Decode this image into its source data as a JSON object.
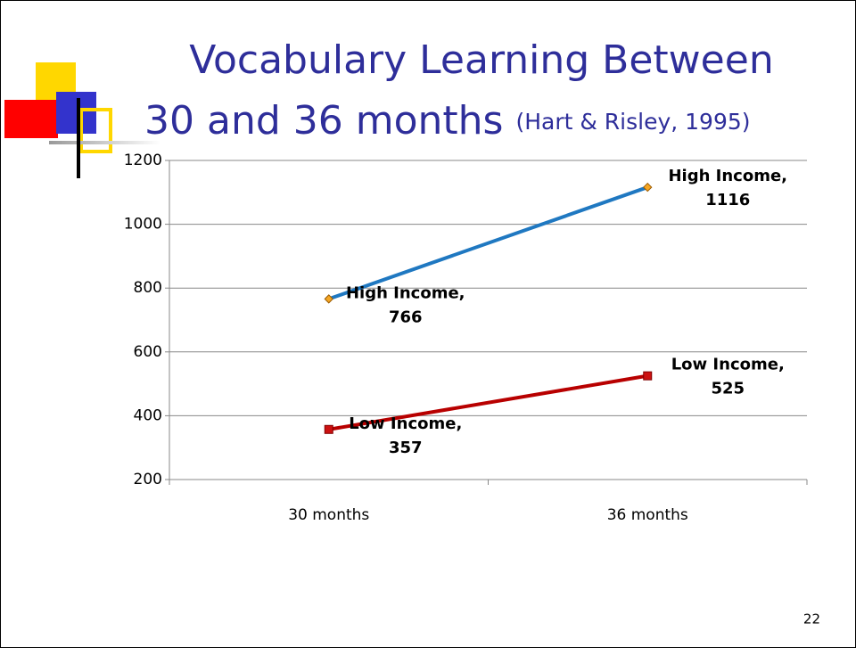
{
  "title_line1": "Vocabulary Learning Between",
  "title_line2": "30 and 36 months",
  "citation": "(Hart & Risley, 1995)",
  "page_number": "22",
  "chart_data": {
    "type": "line",
    "categories": [
      "30 months",
      "36 months"
    ],
    "series": [
      {
        "name": "High Income",
        "color": "#1f78c1",
        "marker_color": "#f5a623",
        "values": [
          766,
          1116
        ],
        "value_labels": [
          "High Income, 766",
          "High Income, 1116"
        ]
      },
      {
        "name": "Low Income",
        "color": "#b80000",
        "marker_color": "#cc1111",
        "values": [
          357,
          525
        ],
        "value_labels": [
          "Low Income, 357",
          "Low Income, 525"
        ]
      }
    ],
    "ylim": [
      200,
      1200
    ],
    "yticks": [
      200,
      400,
      600,
      800,
      1000,
      1200
    ],
    "grid": true,
    "legend": false
  }
}
